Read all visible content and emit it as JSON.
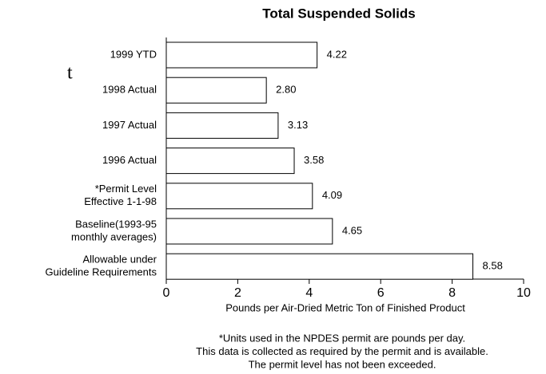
{
  "chart_data": {
    "type": "bar",
    "orientation": "horizontal",
    "title": "Total Suspended Solids",
    "side_text": "t",
    "categories": [
      [
        "1999 YTD"
      ],
      [
        "1998 Actual"
      ],
      [
        "1997 Actual"
      ],
      [
        "1996 Actual"
      ],
      [
        "*Permit Level",
        "Effective 1-1-98"
      ],
      [
        "Baseline(1993-95",
        "monthly averages)"
      ],
      [
        "Allowable under",
        "Guideline Requirements"
      ]
    ],
    "values": [
      4.22,
      2.8,
      3.13,
      3.58,
      4.09,
      4.65,
      8.58
    ],
    "value_labels": [
      "4.22",
      "2.80",
      "3.13",
      "3.58",
      "4.09",
      "4.65",
      "8.58"
    ],
    "color": "#ffffff",
    "xlim": [
      0,
      10
    ],
    "xticks": [
      0,
      2,
      4,
      6,
      8,
      10
    ],
    "xlabel": "Pounds per Air-Dried Metric Ton of Finished Product",
    "notes": [
      "*Units used in the NPDES permit are pounds per day.",
      "This data is collected as required by the permit and is available.",
      "The permit level has not been exceeded."
    ]
  }
}
